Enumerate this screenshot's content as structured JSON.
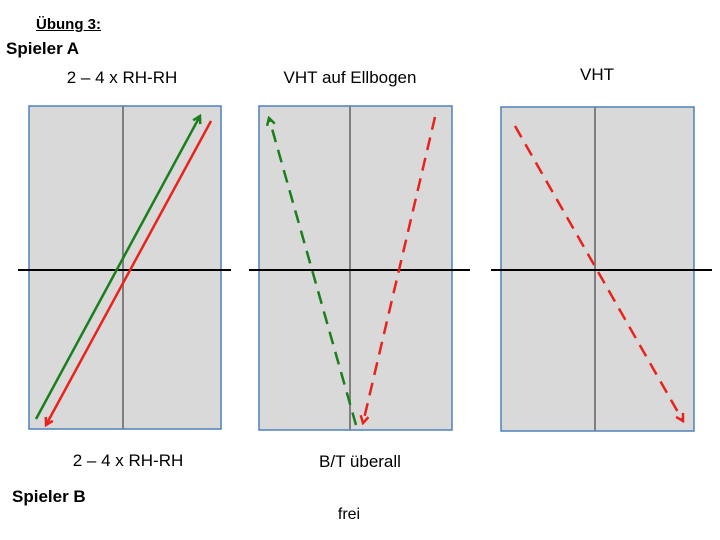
{
  "exercise_title": "Übung 3:",
  "player_a": "Spieler A",
  "player_b": "Spieler B",
  "diagrams": [
    {
      "top_caption": "2 – 4 x RH-RH",
      "bottom_caption": "2 – 4 x RH-RH",
      "strokes": [
        {
          "color": "green",
          "style": "solid",
          "arrow": "end"
        },
        {
          "color": "red",
          "style": "solid",
          "arrow": "end"
        }
      ]
    },
    {
      "top_caption": "VHT auf Ellbogen",
      "bottom_caption": "B/T überall",
      "strokes": [
        {
          "color": "green",
          "style": "dashed",
          "arrow": "end"
        },
        {
          "color": "red",
          "style": "dashed",
          "arrow": "end"
        }
      ]
    },
    {
      "top_caption": "VHT",
      "bottom_caption": "frei",
      "strokes": [
        {
          "color": "red",
          "style": "dashed",
          "arrow": "end"
        }
      ]
    }
  ],
  "colors": {
    "table_fill": "#d9d9d9",
    "table_border": "#4f81bd",
    "center_line": "#7f7f7f",
    "net": "#000000",
    "green": "#1a7f1a",
    "red": "#e8231d"
  }
}
